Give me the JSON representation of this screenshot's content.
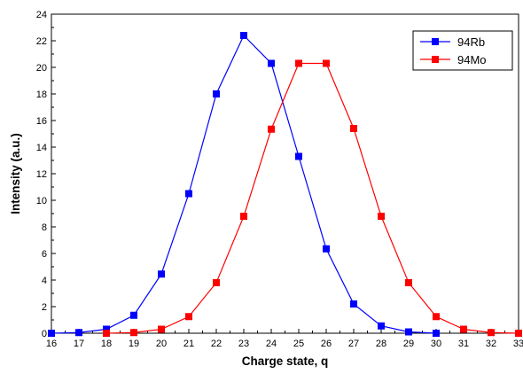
{
  "chart_data": {
    "type": "line",
    "title": "",
    "xlabel": "Charge state, q",
    "ylabel": "Intensity (a.u.)",
    "xlim": [
      16,
      33
    ],
    "ylim": [
      0,
      24
    ],
    "x_ticks": [
      16,
      17,
      18,
      19,
      20,
      21,
      22,
      23,
      24,
      25,
      26,
      27,
      28,
      29,
      30,
      31,
      32,
      33
    ],
    "y_ticks": [
      0,
      2,
      4,
      6,
      8,
      10,
      12,
      14,
      16,
      18,
      20,
      22,
      24
    ],
    "grid": false,
    "legend_position": "top-right",
    "series": [
      {
        "name": "94Rb",
        "color": "#0000ff",
        "marker": "square",
        "x": [
          16,
          17,
          18,
          19,
          20,
          21,
          22,
          23,
          24,
          25,
          26,
          27,
          28,
          29,
          30
        ],
        "y": [
          0.0,
          0.05,
          0.3,
          1.35,
          4.45,
          10.5,
          18.0,
          22.4,
          20.3,
          13.3,
          6.35,
          2.2,
          0.55,
          0.1,
          0.0
        ]
      },
      {
        "name": "94Mo",
        "color": "#ff0000",
        "marker": "square",
        "x": [
          18,
          19,
          20,
          21,
          22,
          23,
          24,
          25,
          26,
          27,
          28,
          29,
          30,
          31,
          32,
          33
        ],
        "y": [
          0.0,
          0.05,
          0.3,
          1.25,
          3.8,
          8.8,
          15.35,
          20.3,
          20.3,
          15.4,
          8.8,
          3.8,
          1.25,
          0.3,
          0.05,
          0.0
        ]
      }
    ]
  }
}
